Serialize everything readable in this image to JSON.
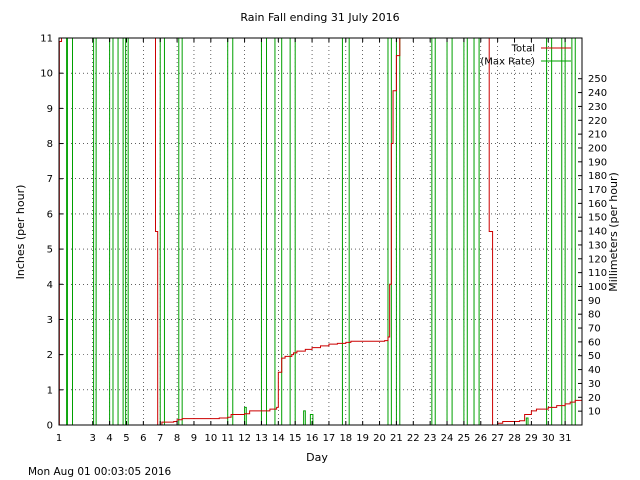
{
  "chart_data": {
    "type": "line",
    "title": "Rain Fall ending 31 July 2016",
    "xlabel": "Day",
    "ylabel": "Inches (per hour)",
    "y2label": "Millimeters (per hour)",
    "xlim": [
      1,
      32
    ],
    "ylim": [
      0,
      11
    ],
    "y2lim": [
      0,
      279.4
    ],
    "xticks": [
      1,
      3,
      4,
      5,
      6,
      7,
      8,
      9,
      10,
      11,
      12,
      13,
      14,
      15,
      16,
      17,
      18,
      19,
      20,
      21,
      22,
      23,
      24,
      25,
      26,
      27,
      28,
      29,
      30,
      31
    ],
    "yticks": [
      0,
      1,
      2,
      3,
      4,
      5,
      6,
      7,
      8,
      9,
      10,
      11
    ],
    "y2ticks": [
      10,
      20,
      30,
      40,
      50,
      60,
      70,
      80,
      90,
      100,
      110,
      120,
      130,
      140,
      150,
      160,
      170,
      180,
      190,
      200,
      210,
      220,
      230,
      240,
      250
    ],
    "grid": true,
    "legend_position": "top-right",
    "series": [
      {
        "name": "Total",
        "color": "#cc0000",
        "x": [
          1.0,
          1.02,
          1.15,
          6.7,
          6.72,
          6.85,
          7.1,
          7.8,
          8.0,
          8.3,
          10.5,
          11.0,
          11.2,
          12.0,
          12.3,
          13.5,
          13.9,
          14.0,
          14.2,
          14.4,
          14.8,
          14.9,
          15.1,
          15.6,
          16.0,
          16.5,
          17.0,
          17.5,
          18.0,
          18.3,
          20.3,
          20.5,
          20.6,
          20.7,
          20.8,
          21.0,
          21.2,
          26.4,
          26.5,
          26.7,
          27.0,
          27.3,
          28.3,
          28.6,
          29.0,
          29.3,
          30.0,
          30.5,
          31.0,
          31.3,
          31.6,
          32.0
        ],
        "values": [
          0,
          10.9,
          11,
          11,
          5.5,
          0,
          0.08,
          0.1,
          0.15,
          0.18,
          0.2,
          0.22,
          0.3,
          0.32,
          0.4,
          0.45,
          0.5,
          1.5,
          1.9,
          1.95,
          2.0,
          2.05,
          2.1,
          2.15,
          2.2,
          2.25,
          2.3,
          2.32,
          2.35,
          2.38,
          2.4,
          2.5,
          4.0,
          8.0,
          9.5,
          10.5,
          11,
          11,
          5.5,
          0,
          0.05,
          0.1,
          0.12,
          0.3,
          0.4,
          0.45,
          0.5,
          0.55,
          0.6,
          0.65,
          0.7,
          0.75
        ]
      },
      {
        "name": "(Max Rate)",
        "color": "#00a000",
        "spikes": [
          {
            "start": 1.0,
            "end": 1.45
          },
          {
            "start": 1.5,
            "end": 1.8,
            "drop_at": 5.9
          },
          {
            "start": 3.05,
            "end": 3.2
          },
          {
            "start": 4.0,
            "end": 4.2
          },
          {
            "start": 4.5,
            "end": 4.8,
            "drop_at": 4.8
          },
          {
            "start": 4.95,
            "end": 5.1,
            "drop_at": 1.0
          },
          {
            "start": 7.0,
            "end": 7.25
          },
          {
            "start": 8.1,
            "end": 8.3
          },
          {
            "start": 11.0,
            "end": 11.3
          },
          {
            "start": 12.0,
            "end": 12.1,
            "peak": 0.5
          },
          {
            "start": 13.0,
            "end": 13.3
          },
          {
            "start": 13.8,
            "end": 14.2
          },
          {
            "start": 14.7,
            "end": 15.0
          },
          {
            "start": 15.5,
            "end": 15.6,
            "peak": 0.4
          },
          {
            "start": 15.9,
            "end": 16.05,
            "peak": 0.3
          },
          {
            "start": 17.8,
            "end": 18.2
          },
          {
            "start": 20.5,
            "end": 20.7
          },
          {
            "start": 21.0,
            "end": 21.2
          },
          {
            "start": 23.1,
            "end": 23.3
          },
          {
            "start": 24.0,
            "end": 24.3
          },
          {
            "start": 25.0,
            "end": 25.2
          },
          {
            "start": 25.6,
            "end": 25.9
          },
          {
            "start": 28.7,
            "end": 28.8,
            "peak": 0.2
          },
          {
            "start": 29.9,
            "end": 30.2
          },
          {
            "start": 30.8,
            "end": 31.0
          },
          {
            "start": 31.4,
            "end": 31.6
          }
        ]
      }
    ]
  },
  "footer": {
    "timestamp": "Mon Aug 01 00:03:05 2016"
  }
}
